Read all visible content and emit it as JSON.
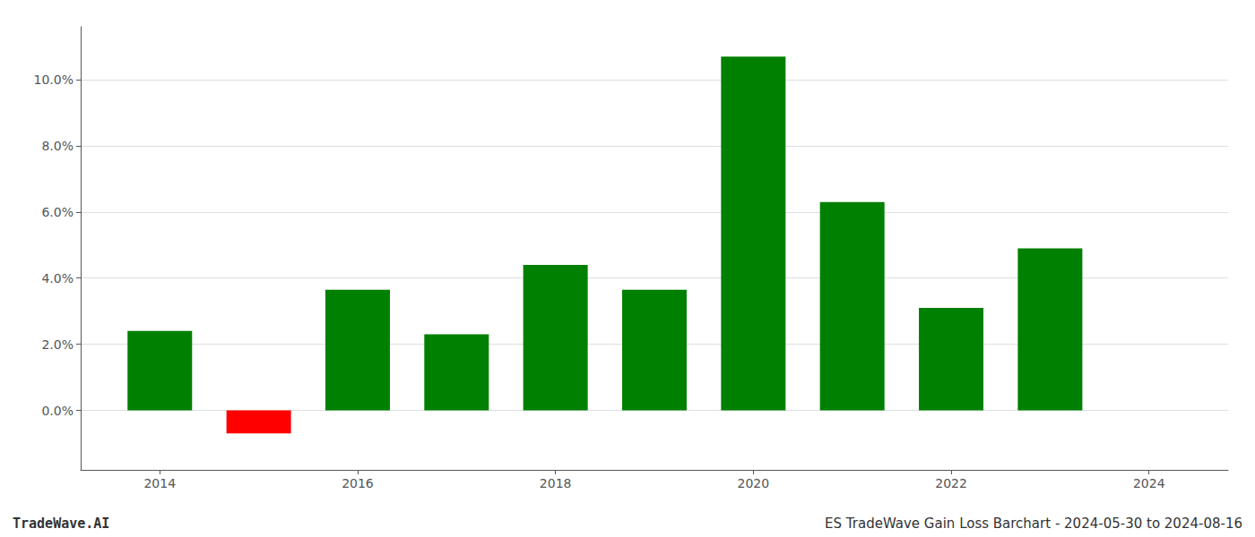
{
  "chart_data": {
    "type": "bar",
    "x": [
      2014,
      2015,
      2016,
      2017,
      2018,
      2019,
      2020,
      2021,
      2022,
      2023
    ],
    "values": [
      0.024,
      -0.007,
      0.0365,
      0.023,
      0.044,
      0.0365,
      0.107,
      0.063,
      0.031,
      0.049
    ],
    "colors": [
      "#008000",
      "#ff0000",
      "#008000",
      "#008000",
      "#008000",
      "#008000",
      "#008000",
      "#008000",
      "#008000",
      "#008000"
    ],
    "xlim": [
      2013.2,
      2024.8
    ],
    "xticks": [
      2014,
      2016,
      2018,
      2020,
      2022,
      2024
    ],
    "ylim": [
      -0.018,
      0.116
    ],
    "yticks": [
      {
        "value": 0.0,
        "label": "0.0%"
      },
      {
        "value": 0.02,
        "label": "2.0%"
      },
      {
        "value": 0.04,
        "label": "4.0%"
      },
      {
        "value": 0.06,
        "label": "6.0%"
      },
      {
        "value": 0.08,
        "label": "8.0%"
      },
      {
        "value": 0.1,
        "label": "10.0%"
      }
    ],
    "grid": true,
    "annotations": [
      "TradeWave.AI",
      "ES TradeWave Gain Loss Barchart - 2024-05-30 to 2024-08-16"
    ]
  }
}
